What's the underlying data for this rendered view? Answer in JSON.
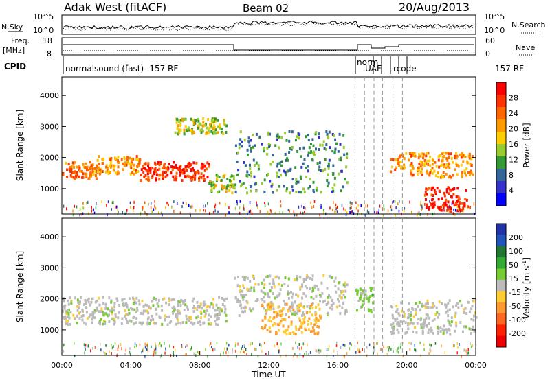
{
  "header": {
    "radar": "Adak West (fitACF)",
    "beam": "Beam 02",
    "date": "20/Aug/2013"
  },
  "noise_panel": {
    "left_label": "N.Sky",
    "right_label": "N.Search",
    "left_ticks": [
      "10^5",
      "10^0"
    ],
    "right_ticks": [
      "10^5",
      "10^0"
    ]
  },
  "freq_panel": {
    "left_label_1": "Freq.",
    "left_label_2": "[MHz]",
    "right_label": "Nave",
    "left_ticks": [
      "18",
      "8"
    ],
    "right_ticks": [
      "60",
      "0"
    ]
  },
  "cpid": {
    "label": "CPID",
    "program": "normalsound (fast) -157 RF",
    "segment_1": "norm",
    "segment_2": "UAF",
    "segment_3": "rcode",
    "end_program": "157 RF"
  },
  "power_panel": {
    "ylabel": "Slant Range [km]",
    "yticks": [
      "4000",
      "3000",
      "2000",
      "1000"
    ],
    "colorbar_label": "Power [dB]",
    "colorbar_ticks": [
      "28",
      "24",
      "20",
      "16",
      "12",
      "8",
      "4"
    ],
    "colorbar_colors": [
      "#ff0000",
      "#ff3300",
      "#ff6600",
      "#ff9900",
      "#ffcc00",
      "#99cc33",
      "#339933",
      "#336699",
      "#3333cc",
      "#0000ff"
    ]
  },
  "velocity_panel": {
    "ylabel": "Slant Range [km]",
    "yticks": [
      "4000",
      "3000",
      "2000",
      "1000"
    ],
    "colorbar_label": "Velocity [m s",
    "colorbar_label_sup": "-1",
    "colorbar_label_end": "]",
    "colorbar_ticks": [
      "200",
      "100",
      "50",
      "15",
      "-15",
      "-50",
      "-100",
      "-200"
    ],
    "colorbar_colors": [
      "#2233aa",
      "#2255bb",
      "#227733",
      "#33aa33",
      "#77cc33",
      "#bbbbbb",
      "#ffcc33",
      "#ff9933",
      "#ff6622",
      "#ff2200",
      "#ee0000"
    ]
  },
  "xaxis": {
    "label": "Time UT",
    "ticks": [
      "00:00",
      "04:00",
      "08:00",
      "12:00",
      "16:00",
      "20:00",
      "00:00"
    ]
  },
  "chart_data": [
    {
      "type": "heatmap",
      "title": "Power",
      "xlabel": "Time UT",
      "ylabel": "Slant Range [km]",
      "xlim": [
        "00:00",
        "24:00"
      ],
      "ylim": [
        180,
        4600
      ],
      "zlabel": "Power [dB]",
      "zlim": [
        0,
        30
      ],
      "regions": [
        {
          "t": [
            0.0,
            2.0
          ],
          "range": [
            1350,
            1900
          ],
          "z": 22
        },
        {
          "t": [
            2.0,
            4.5
          ],
          "range": [
            1500,
            2100
          ],
          "z": 20
        },
        {
          "t": [
            4.5,
            8.5
          ],
          "range": [
            1300,
            1900
          ],
          "z": 26
        },
        {
          "t": [
            8.5,
            10.0
          ],
          "range": [
            900,
            1500
          ],
          "z": 14
        },
        {
          "t": [
            10.0,
            16.5
          ],
          "range": [
            900,
            2900
          ],
          "z": 10
        },
        {
          "t": [
            6.5,
            9.5
          ],
          "range": [
            2800,
            3300
          ],
          "z": 14
        },
        {
          "t": [
            19.0,
            23.8
          ],
          "range": [
            1400,
            2200
          ],
          "z": 20
        },
        {
          "t": [
            21.0,
            23.5
          ],
          "range": [
            300,
            1100
          ],
          "z": 28
        }
      ]
    },
    {
      "type": "heatmap",
      "title": "Velocity",
      "xlabel": "Time UT",
      "ylabel": "Slant Range [km]",
      "xlim": [
        "00:00",
        "24:00"
      ],
      "ylim": [
        180,
        4600
      ],
      "zlabel": "Velocity [m s-1]",
      "zlim": [
        -250,
        250
      ],
      "regions": [
        {
          "t": [
            0.0,
            9.5
          ],
          "range": [
            1200,
            2100
          ],
          "z": 0
        },
        {
          "t": [
            10.0,
            16.5
          ],
          "range": [
            1500,
            2800
          ],
          "z": 0
        },
        {
          "t": [
            11.5,
            15.0
          ],
          "range": [
            900,
            1900
          ],
          "z": -60
        },
        {
          "t": [
            17.0,
            18.0
          ],
          "range": [
            1600,
            2400
          ],
          "z": 40
        },
        {
          "t": [
            19.0,
            24.0
          ],
          "range": [
            900,
            2000
          ],
          "z": 0
        }
      ]
    }
  ]
}
